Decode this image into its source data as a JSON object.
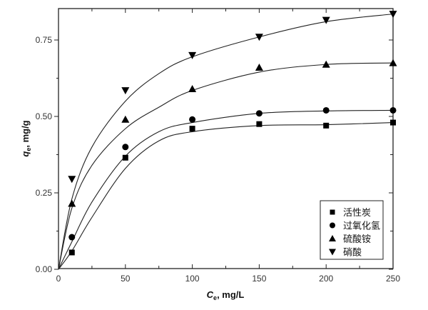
{
  "chart_data": {
    "type": "scatter",
    "xlabel": {
      "main": "C",
      "sub": "e",
      "unit": ", mg/L"
    },
    "ylabel": {
      "main": "q",
      "sub": "e",
      "unit": ", mg/g"
    },
    "xlim": [
      0,
      250
    ],
    "ylim": [
      0,
      0.85
    ],
    "x_ticks": [
      "0",
      "50",
      "100",
      "150",
      "200",
      "250"
    ],
    "y_ticks": [
      "0.00",
      "0.25",
      "0.50",
      "0.75"
    ],
    "grid": false,
    "legend_position": "bottom-right",
    "x": [
      10,
      50,
      100,
      150,
      200,
      250
    ],
    "series": [
      {
        "name": "活性炭",
        "marker": "square",
        "values": [
          0.055,
          0.365,
          0.46,
          0.475,
          0.47,
          0.48
        ],
        "fit": {
          "x": [
            0,
            10,
            25,
            50,
            75,
            100,
            150,
            200,
            250
          ],
          "y": [
            0,
            0.06,
            0.17,
            0.33,
            0.42,
            0.45,
            0.47,
            0.473,
            0.48
          ]
        }
      },
      {
        "name": "过氧化氢",
        "marker": "circle",
        "values": [
          0.105,
          0.4,
          0.49,
          0.51,
          0.52,
          0.52
        ],
        "fit": {
          "x": [
            0,
            10,
            25,
            50,
            75,
            100,
            150,
            200,
            250
          ],
          "y": [
            0,
            0.09,
            0.22,
            0.37,
            0.45,
            0.48,
            0.51,
            0.518,
            0.52
          ]
        }
      },
      {
        "name": "硫酸铵",
        "marker": "triangle-up",
        "values": [
          0.215,
          0.49,
          0.59,
          0.66,
          0.67,
          0.675
        ],
        "fit": {
          "x": [
            0,
            10,
            25,
            50,
            75,
            100,
            150,
            200,
            250
          ],
          "y": [
            0,
            0.2,
            0.34,
            0.46,
            0.53,
            0.585,
            0.645,
            0.67,
            0.675
          ]
        }
      },
      {
        "name": "硝酸",
        "marker": "triangle-down",
        "values": [
          0.295,
          0.585,
          0.7,
          0.76,
          0.815,
          0.835
        ],
        "fit": {
          "x": [
            0,
            10,
            25,
            50,
            75,
            100,
            150,
            200,
            250
          ],
          "y": [
            0,
            0.23,
            0.4,
            0.55,
            0.64,
            0.695,
            0.76,
            0.81,
            0.835
          ]
        }
      }
    ],
    "colors": {
      "ink": "#000000"
    }
  }
}
